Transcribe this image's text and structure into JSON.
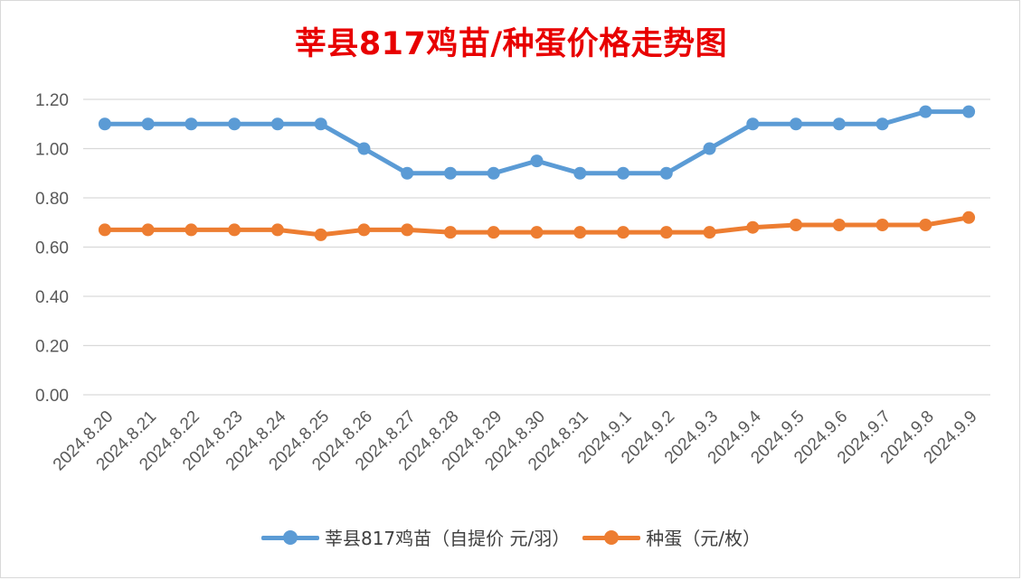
{
  "chart_data": {
    "type": "line",
    "title": "莘县817鸡苗/种蛋价格走势图",
    "categories": [
      "2024.8.20",
      "2024.8.21",
      "2024.8.22",
      "2024.8.23",
      "2024.8.24",
      "2024.8.25",
      "2024.8.26",
      "2024.8.27",
      "2024.8.28",
      "2024.8.29",
      "2024.8.30",
      "2024.8.31",
      "2024.9.1",
      "2024.9.2",
      "2024.9.3",
      "2024.9.4",
      "2024.9.5",
      "2024.9.6",
      "2024.9.7",
      "2024.9.8",
      "2024.9.9"
    ],
    "y_ticks": [
      "0.00",
      "0.20",
      "0.40",
      "0.60",
      "0.80",
      "1.00",
      "1.20"
    ],
    "ylim": [
      0,
      1.2
    ],
    "grid": true,
    "legend_position": "bottom",
    "series": [
      {
        "name": "莘县817鸡苗（自提价 元/羽）",
        "color": "#5b9bd5",
        "values": [
          1.1,
          1.1,
          1.1,
          1.1,
          1.1,
          1.1,
          1.0,
          0.9,
          0.9,
          0.9,
          0.95,
          0.9,
          0.9,
          0.9,
          1.0,
          1.1,
          1.1,
          1.1,
          1.1,
          1.15,
          1.15
        ]
      },
      {
        "name": "种蛋（元/枚）",
        "color": "#ed7d31",
        "values": [
          0.67,
          0.67,
          0.67,
          0.67,
          0.67,
          0.65,
          0.67,
          0.67,
          0.66,
          0.66,
          0.66,
          0.66,
          0.66,
          0.66,
          0.66,
          0.68,
          0.69,
          0.69,
          0.69,
          0.69,
          0.72
        ]
      }
    ]
  }
}
